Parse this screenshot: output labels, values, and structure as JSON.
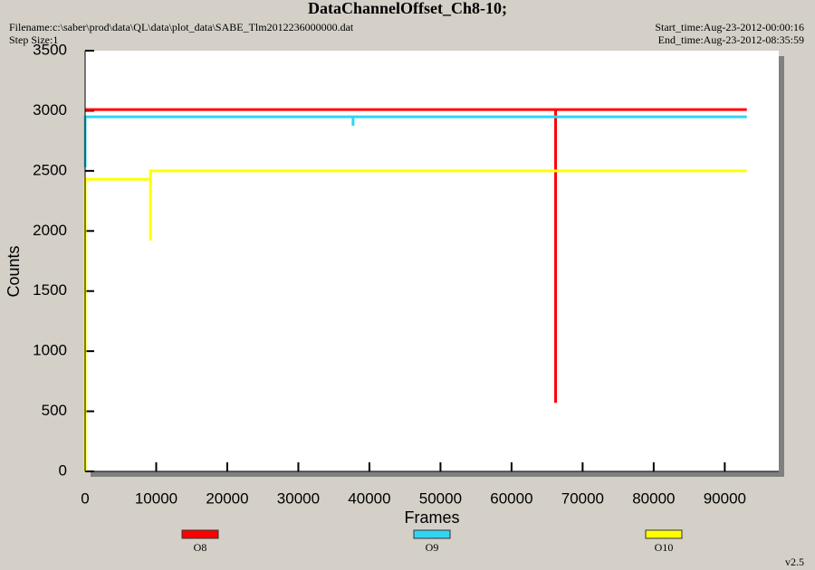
{
  "header": {
    "filename": "Filename:c:\\saber\\prod\\data\\QL\\data\\plot_data\\SABE_Tlm2012236000000.dat",
    "step_size": "Step Size:1",
    "start_time": "Start_time:Aug-23-2012-00:00:16",
    "end_time": "End_time:Aug-23-2012-08:35:59",
    "version": "v2.5"
  },
  "chart_data": {
    "type": "line",
    "title": "DataChannelOffset_Ch8-10;",
    "x_label": "Frames",
    "y_label": "Counts",
    "xlim": [
      0,
      97600
    ],
    "ylim": [
      0,
      3500
    ],
    "xticks": [
      0,
      10000,
      20000,
      30000,
      40000,
      50000,
      60000,
      70000,
      80000,
      90000
    ],
    "yticks": [
      0,
      500,
      1000,
      1500,
      2000,
      2500,
      3000,
      3500
    ],
    "series": [
      {
        "name": "O8",
        "color": "#ff0000",
        "x": [
          0,
          66200,
          66200,
          66200,
          93100
        ],
        "values": [
          3010,
          3010,
          570,
          3010,
          3010
        ]
      },
      {
        "name": "O9",
        "color": "#33d4f0",
        "x": [
          0,
          0,
          37700,
          37700,
          37700,
          93100
        ],
        "values": [
          2530,
          2950,
          2950,
          2875,
          2950,
          2950
        ]
      },
      {
        "name": "O10",
        "color": "#ffff00",
        "x": [
          0,
          0,
          9200,
          9200,
          9200,
          93100
        ],
        "values": [
          0,
          2430,
          2430,
          1920,
          2500,
          2500
        ]
      }
    ]
  }
}
